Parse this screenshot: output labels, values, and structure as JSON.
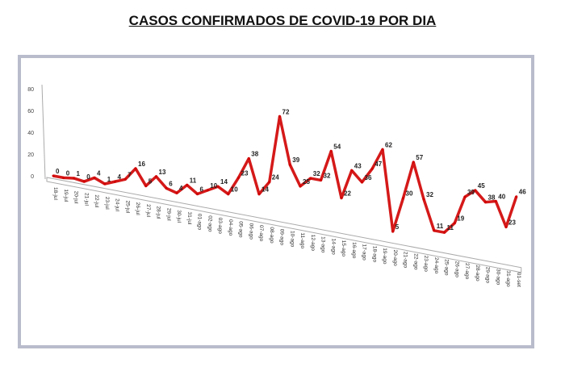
{
  "chart_data": {
    "type": "line",
    "title": "CASOS CONFIRMADOS DE COVID-19 POR DIA",
    "categories": [
      "18-jul",
      "19-jul",
      "20-jul",
      "21-jul",
      "22-jul",
      "23-jul",
      "24-jul",
      "25-jul",
      "26-jul",
      "27-jul",
      "28-jul",
      "29-jul",
      "30-jul",
      "31-jul",
      "01-ago",
      "02-ago",
      "03-ago",
      "04-ago",
      "05-ago",
      "06-ago",
      "07-ago",
      "08-ago",
      "09-ago",
      "10-ago",
      "11-ago",
      "12-ago",
      "13-ago",
      "14-ago",
      "15-ago",
      "16-ago",
      "17-ago",
      "18-ago",
      "19-ago",
      "20-ago",
      "21-ago",
      "22-ago",
      "23-ago",
      "24-ago",
      "25-ago",
      "26-ago",
      "27-ago",
      "28-ago",
      "29-ago",
      "30-ago",
      "31-ago",
      "01-set"
    ],
    "values": [
      0,
      0,
      1,
      0,
      4,
      1,
      4,
      7,
      16,
      5,
      13,
      6,
      4,
      11,
      6,
      10,
      14,
      10,
      23,
      38,
      14,
      24,
      72,
      39,
      25,
      32,
      32,
      54,
      22,
      43,
      36,
      47,
      62,
      5,
      30,
      57,
      32,
      11,
      11,
      19,
      39,
      45,
      38,
      40,
      23,
      46
    ],
    "yticks": [
      "0",
      "20",
      "40",
      "60",
      "80"
    ],
    "ylim": [
      0,
      80
    ],
    "line_color": "#d00000",
    "grid": false,
    "legend": "none"
  }
}
